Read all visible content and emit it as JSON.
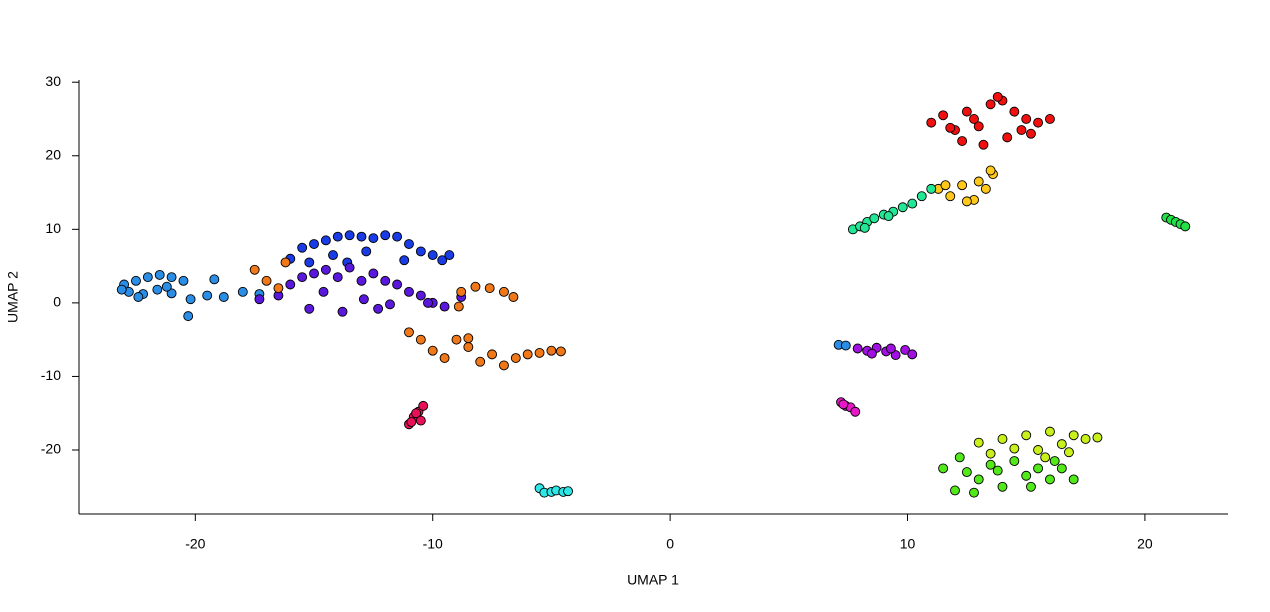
{
  "chart_data": {
    "type": "scatter",
    "x_label": "UMAP 1",
    "y_label": "UMAP 2",
    "xlim": [
      -24.9,
      23.5
    ],
    "ylim": [
      -28.7,
      30.3
    ],
    "xticks": [
      -20,
      -10,
      0,
      10,
      20
    ],
    "yticks": [
      -20,
      -10,
      0,
      10,
      20,
      30
    ],
    "series": [
      {
        "color": "#2b8ee6",
        "x": [
          -23,
          -22.5,
          -22,
          -21.5,
          -21,
          -20.5,
          -22.8,
          -22.2,
          -21.6,
          -21,
          -20.2,
          -19.5,
          -18.8,
          -18,
          -17.3,
          -20.3,
          -22.4,
          -21.2,
          -23.1,
          -19.2,
          7.1,
          7.4
        ],
        "y": [
          2.5,
          3,
          3.5,
          3.8,
          3.5,
          3,
          1.5,
          1.2,
          1.8,
          1.3,
          0.5,
          1,
          0.8,
          1.5,
          1.2,
          -1.8,
          0.8,
          2.2,
          1.8,
          3.2,
          -5.7,
          -5.8
        ]
      },
      {
        "color": "#1a3ce6",
        "x": [
          -16,
          -15.5,
          -15,
          -14.5,
          -14,
          -13.5,
          -13,
          -12.5,
          -12,
          -11.5,
          -11,
          -10.5,
          -10,
          -9.6,
          -9.3,
          -14.2,
          -12.8,
          -11.2,
          -15.2,
          -13.6
        ],
        "y": [
          6,
          7.5,
          8,
          8.5,
          9,
          9.2,
          9,
          8.8,
          9.2,
          9,
          8,
          7,
          6.5,
          5.8,
          6.5,
          6.5,
          7,
          5.8,
          5.5,
          5.5
        ]
      },
      {
        "color": "#5a18dc",
        "x": [
          -17.3,
          -16.5,
          -16,
          -15.5,
          -15,
          -14.5,
          -14,
          -13.5,
          -13,
          -12.5,
          -12,
          -11.5,
          -11,
          -10.5,
          -10,
          -9.5,
          -8.8,
          -15.2,
          -13.8,
          -12.3,
          -14.6,
          -12.9,
          -11.8,
          -10.2
        ],
        "y": [
          0.5,
          1,
          2.5,
          3.5,
          4,
          4.5,
          3.5,
          4.8,
          3,
          4,
          3,
          2.5,
          1.5,
          1,
          0,
          -0.5,
          0.8,
          -0.8,
          -1.2,
          -0.8,
          1.5,
          0.5,
          -0.2,
          0
        ]
      },
      {
        "color": "#f07818",
        "x": [
          -17.5,
          -17,
          -16.5,
          -16.2,
          -11,
          -10.5,
          -10,
          -9.5,
          -9,
          -8.5,
          -8,
          -7.5,
          -7,
          -6.5,
          -6,
          -5.5,
          -5,
          -4.6,
          -8.8,
          -8.2,
          -7.6,
          -7,
          -6.6,
          -8.9,
          -8.5
        ],
        "y": [
          4.5,
          3,
          2,
          5.5,
          -4,
          -5,
          -6.5,
          -7.5,
          -5,
          -6,
          -8,
          -7,
          -8.5,
          -7.5,
          -7,
          -6.8,
          -6.5,
          -6.6,
          1.5,
          2.2,
          2,
          1.5,
          0.8,
          -0.5,
          -4.8
        ]
      },
      {
        "color": "#e8105a",
        "x": [
          -11,
          -10.8,
          -10.6,
          -10.4,
          -10.5,
          -10.9,
          -10.7
        ],
        "y": [
          -16.5,
          -15.5,
          -14.8,
          -14,
          -16,
          -16.2,
          -15
        ]
      },
      {
        "color": "#2ee8e8",
        "x": [
          -5.5,
          -5.3,
          -5,
          -4.8,
          -4.5,
          -4.3
        ],
        "y": [
          -25.2,
          -25.8,
          -25.7,
          -25.5,
          -25.7,
          -25.6
        ]
      },
      {
        "color": "#f01010",
        "x": [
          11,
          11.5,
          12,
          12.5,
          13,
          13.5,
          14,
          14.5,
          15,
          15.5,
          16,
          12.3,
          13.2,
          14.2,
          15.2,
          13.8,
          11.8,
          14.8,
          12.8
        ],
        "y": [
          24.5,
          25.5,
          23.5,
          26,
          24,
          27,
          27.5,
          26,
          25,
          24.5,
          25,
          22,
          21.5,
          22.5,
          23,
          28,
          23.8,
          23.5,
          25
        ]
      },
      {
        "color": "#ffc81a",
        "x": [
          11.3,
          11.8,
          12.3,
          12.8,
          13.3,
          13.6,
          12.5,
          13,
          13.5,
          11.6
        ],
        "y": [
          15.5,
          14.5,
          16,
          14,
          15.5,
          17.5,
          13.8,
          16.5,
          18,
          16
        ]
      },
      {
        "color": "#22e896",
        "x": [
          7.7,
          8,
          8.3,
          8.6,
          9,
          9.4,
          9.8,
          10.2,
          10.6,
          11,
          8.2,
          9.2
        ],
        "y": [
          10,
          10.4,
          11,
          11.5,
          12,
          12.4,
          13,
          13.5,
          14.5,
          15.5,
          10.2,
          11.8
        ]
      },
      {
        "color": "#22e048",
        "x": [
          20.9,
          21.1,
          21.3,
          21.5,
          21.7
        ],
        "y": [
          11.6,
          11.3,
          11,
          10.7,
          10.4
        ]
      },
      {
        "color": "#a010e0",
        "x": [
          7.9,
          8.3,
          8.7,
          9.1,
          9.5,
          9.9,
          10.2,
          8.5,
          9.3
        ],
        "y": [
          -6.2,
          -6.5,
          -6.1,
          -6.6,
          -7.1,
          -6.4,
          -7,
          -6.9,
          -6.2
        ]
      },
      {
        "color": "#e818c8",
        "x": [
          7.2,
          7.4,
          7.6,
          7.8,
          7.3
        ],
        "y": [
          -13.5,
          -14,
          -14.2,
          -14.8,
          -13.8
        ]
      },
      {
        "color": "#52e81a",
        "x": [
          11.5,
          12,
          12.5,
          13,
          13.5,
          14,
          14.5,
          15,
          15.5,
          16,
          16.5,
          17,
          12.2,
          13.8,
          15.2,
          16.2,
          12.8
        ],
        "y": [
          -22.5,
          -25.5,
          -23,
          -24,
          -22,
          -25,
          -21.5,
          -23.5,
          -22.5,
          -24,
          -22.5,
          -24,
          -21,
          -22.8,
          -25,
          -21.5,
          -25.8
        ]
      },
      {
        "color": "#c8f01a",
        "x": [
          13,
          13.5,
          14,
          14.5,
          15,
          15.5,
          16,
          16.5,
          17,
          17.5,
          18,
          15.8,
          16.8
        ],
        "y": [
          -19,
          -20.5,
          -18.5,
          -19.8,
          -18,
          -20,
          -17.5,
          -19.2,
          -18,
          -18.5,
          -18.3,
          -21,
          -20.3
        ]
      }
    ]
  }
}
